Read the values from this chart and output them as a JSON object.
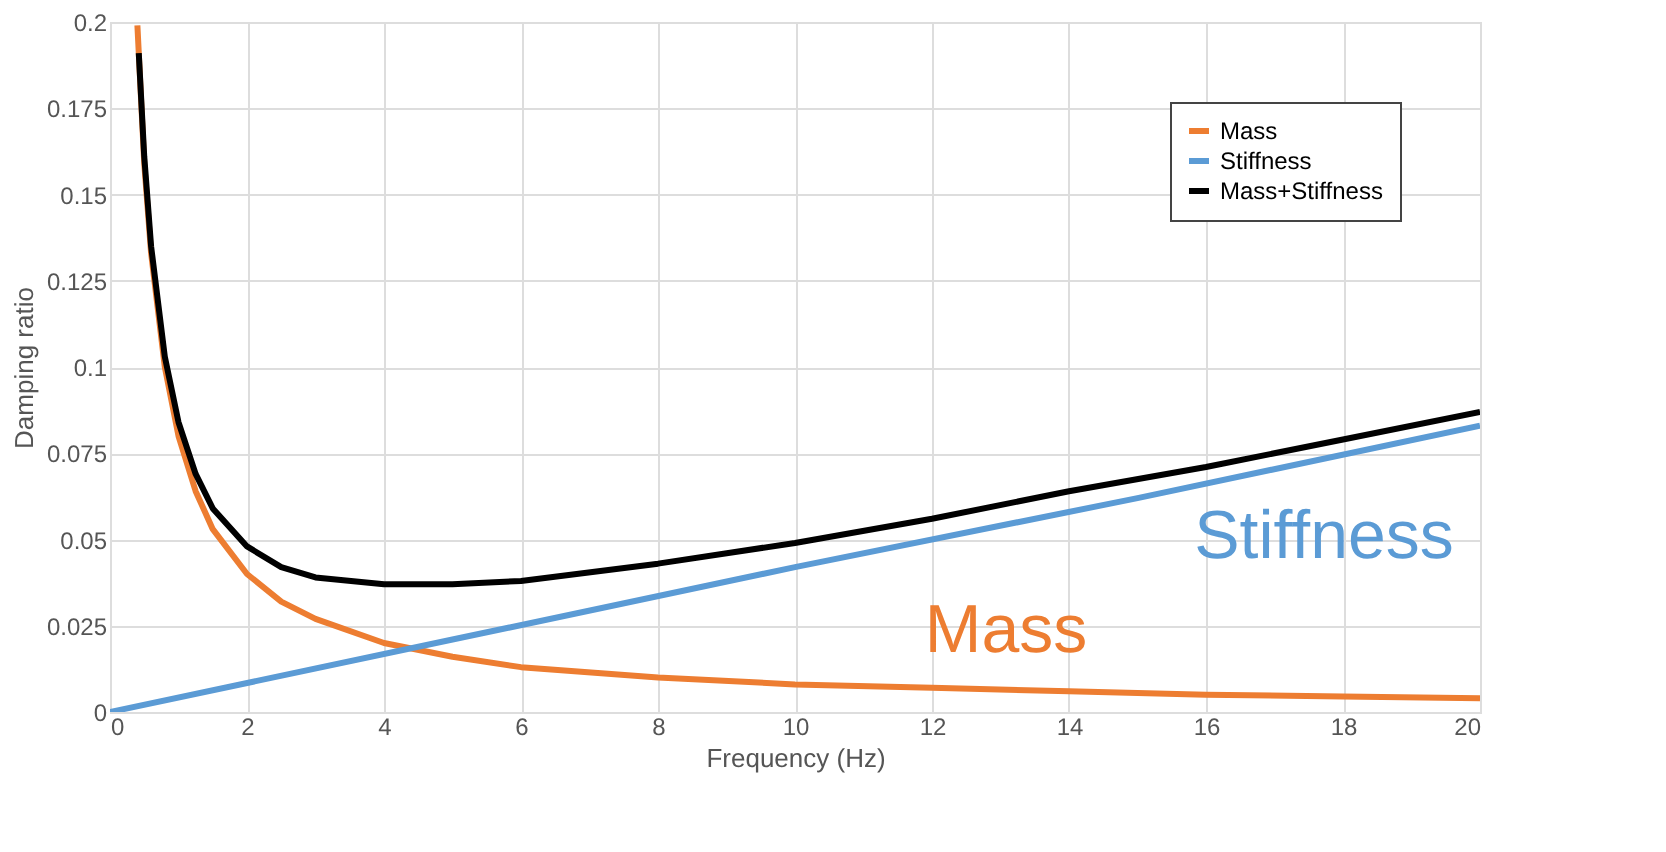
{
  "chart_data": {
    "type": "line",
    "xlabel": "Frequency (Hz)",
    "ylabel": "Damping ratio",
    "xlim": [
      0,
      20
    ],
    "ylim": [
      0,
      0.2
    ],
    "xticks": [
      0,
      2,
      4,
      6,
      8,
      10,
      12,
      14,
      16,
      18,
      20
    ],
    "yticks": [
      0,
      0.025,
      0.05,
      0.075,
      0.1,
      0.125,
      0.15,
      0.175,
      0.2
    ],
    "grid": true,
    "legend": "top right",
    "line_style": "solid",
    "marker": "none",
    "series": [
      {
        "name": "Mass",
        "color": "#ed7d31",
        "x": [
          0.4,
          0.5,
          0.6,
          0.8,
          1,
          1.25,
          1.5,
          2,
          2.5,
          3,
          4,
          5,
          6,
          8,
          10,
          12,
          14,
          16,
          18,
          20
        ],
        "values": [
          0.199,
          0.159,
          0.133,
          0.1,
          0.08,
          0.064,
          0.053,
          0.04,
          0.032,
          0.027,
          0.02,
          0.016,
          0.013,
          0.01,
          0.008,
          0.007,
          0.006,
          0.005,
          0.0045,
          0.004
        ]
      },
      {
        "name": "Stiffness",
        "color": "#5b9bd5",
        "x": [
          0,
          5,
          10,
          15,
          20
        ],
        "values": [
          0,
          0.021,
          0.042,
          0.062,
          0.083
        ]
      },
      {
        "name": "Mass+Stiffness",
        "color": "#000000",
        "x": [
          0.42,
          0.5,
          0.6,
          0.8,
          1,
          1.25,
          1.5,
          2,
          2.5,
          3,
          4,
          5,
          6,
          8,
          10,
          12,
          14,
          16,
          18,
          20
        ],
        "values": [
          0.191,
          0.161,
          0.135,
          0.103,
          0.084,
          0.069,
          0.059,
          0.048,
          0.042,
          0.039,
          0.037,
          0.037,
          0.038,
          0.043,
          0.049,
          0.056,
          0.064,
          0.071,
          0.079,
          0.087
        ]
      }
    ],
    "annotations": [
      "Stiffness",
      "Mass"
    ]
  }
}
